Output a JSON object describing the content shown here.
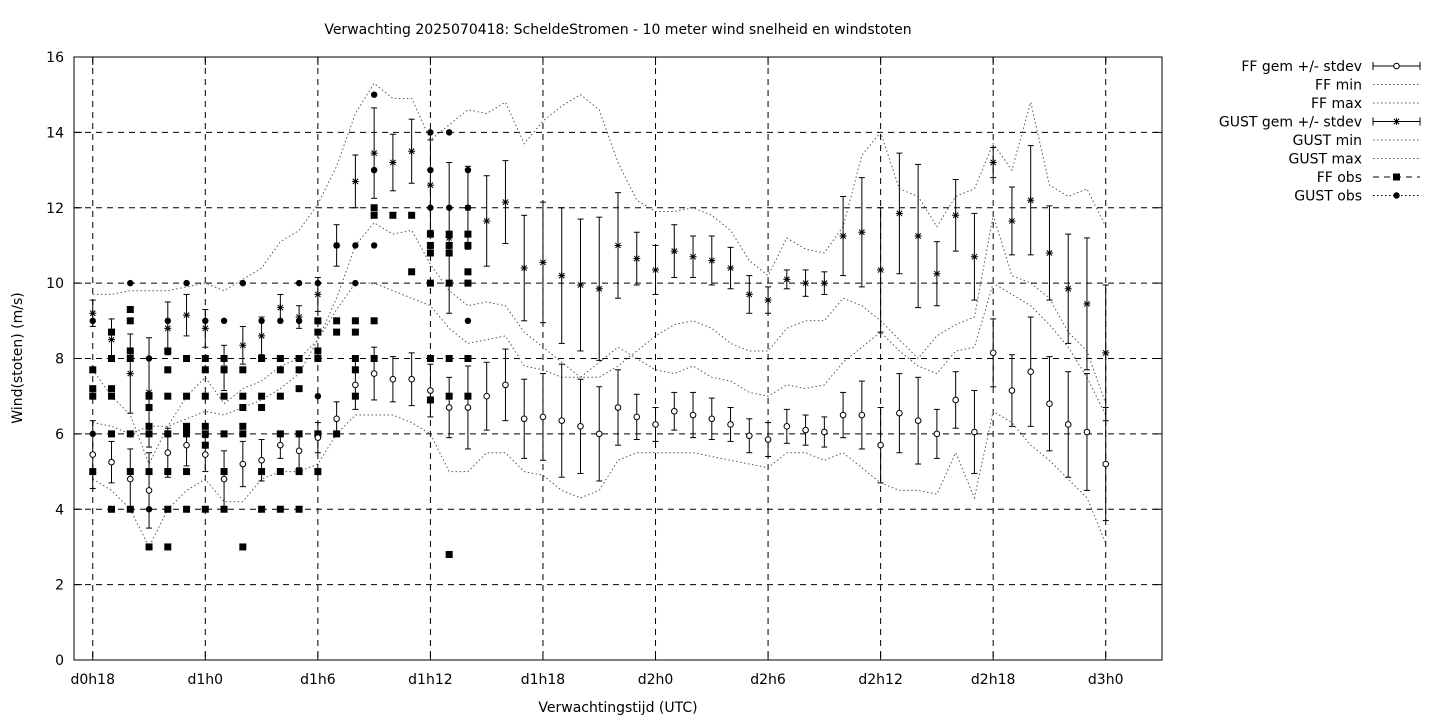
{
  "chart_data": {
    "type": "scatter",
    "title": "Verwachting 2025070418: ScheldeStromen - 10 meter wind snelheid en windstoten",
    "xlabel": "Verwachtingstijd (UTC)",
    "ylabel": "Wind(stoten) (m/s)",
    "xlim": [
      -1,
      57
    ],
    "ylim": [
      0,
      16
    ],
    "grid": true,
    "legend_position": "top-right outside",
    "x_ticks": [
      {
        "x": 0,
        "label": "d0h18"
      },
      {
        "x": 6,
        "label": "d1h0"
      },
      {
        "x": 12,
        "label": "d1h6"
      },
      {
        "x": 18,
        "label": "d1h12"
      },
      {
        "x": 24,
        "label": "d1h18"
      },
      {
        "x": 30,
        "label": "d2h0"
      },
      {
        "x": 36,
        "label": "d2h6"
      },
      {
        "x": 42,
        "label": "d2h12"
      },
      {
        "x": 48,
        "label": "d2h18"
      },
      {
        "x": 54,
        "label": "d3h0"
      }
    ],
    "y_ticks": [
      0,
      2,
      4,
      6,
      8,
      10,
      12,
      14,
      16
    ],
    "x": [
      0,
      1,
      2,
      3,
      4,
      5,
      6,
      7,
      8,
      9,
      10,
      11,
      12,
      13,
      14,
      15,
      16,
      17,
      18,
      19,
      20,
      21,
      22,
      23,
      24,
      25,
      26,
      27,
      28,
      29,
      30,
      31,
      32,
      33,
      34,
      35,
      36,
      37,
      38,
      39,
      40,
      41,
      42,
      43,
      44,
      45,
      46,
      47,
      48,
      49,
      50,
      51,
      52,
      53,
      54
    ],
    "series": [
      {
        "name": "FF gem +/- stdev",
        "marker": "open-circle",
        "values": [
          5.45,
          5.25,
          4.8,
          4.5,
          5.5,
          5.7,
          5.45,
          4.8,
          5.2,
          5.3,
          5.7,
          5.55,
          5.9,
          6.4,
          7.3,
          7.6,
          7.45,
          7.45,
          7.15,
          6.7,
          6.7,
          7.0,
          7.3,
          6.4,
          6.45,
          6.35,
          6.2,
          6.0,
          6.7,
          6.45,
          6.25,
          6.6,
          6.5,
          6.4,
          6.25,
          5.95,
          5.85,
          6.2,
          6.1,
          6.05,
          6.5,
          6.5,
          5.7,
          6.55,
          6.35,
          6.0,
          6.9,
          6.05,
          8.15,
          7.15,
          7.65,
          6.8,
          6.25,
          6.05,
          5.2
        ],
        "stdev": [
          0.9,
          0.55,
          0.8,
          1.0,
          0.65,
          0.55,
          0.45,
          0.75,
          0.6,
          0.55,
          0.35,
          0.45,
          0.4,
          0.45,
          0.65,
          0.7,
          0.6,
          0.7,
          0.7,
          0.8,
          1.1,
          0.9,
          0.95,
          1.05,
          1.15,
          1.5,
          1.25,
          1.25,
          1.0,
          0.6,
          0.45,
          0.5,
          0.6,
          0.55,
          0.45,
          0.45,
          0.45,
          0.45,
          0.4,
          0.4,
          0.6,
          0.9,
          1.0,
          1.05,
          1.15,
          0.65,
          0.75,
          1.1,
          0.9,
          0.95,
          1.45,
          1.25,
          1.4,
          1.55,
          1.5
        ]
      },
      {
        "name": "FF min",
        "style": "dotted",
        "values": [
          4.8,
          4.5,
          4.0,
          3.0,
          4.0,
          4.5,
          4.8,
          4.2,
          4.2,
          4.8,
          5.0,
          5.0,
          5.2,
          6.0,
          6.5,
          6.5,
          6.5,
          6.3,
          6.0,
          5.0,
          5.0,
          5.5,
          5.5,
          5.0,
          4.9,
          4.5,
          4.3,
          4.5,
          5.3,
          5.5,
          5.5,
          5.5,
          5.5,
          5.4,
          5.3,
          5.2,
          5.1,
          5.5,
          5.5,
          5.3,
          5.5,
          5.1,
          4.7,
          4.5,
          4.5,
          4.4,
          5.5,
          4.3,
          6.6,
          6.3,
          5.7,
          5.3,
          4.8,
          4.3,
          3.1
        ]
      },
      {
        "name": "FF max",
        "style": "dotted",
        "values": [
          6.3,
          6.2,
          6.0,
          6.2,
          6.2,
          6.4,
          6.6,
          6.5,
          6.7,
          6.9,
          7.2,
          7.6,
          8.5,
          9.3,
          10.0,
          10.0,
          9.8,
          9.6,
          9.4,
          8.8,
          8.4,
          8.5,
          8.6,
          7.8,
          7.7,
          7.5,
          7.5,
          7.9,
          8.3,
          8.0,
          7.7,
          7.6,
          7.8,
          7.5,
          7.4,
          7.1,
          7.0,
          7.3,
          7.2,
          7.3,
          7.9,
          8.3,
          8.7,
          8.2,
          7.8,
          7.6,
          8.2,
          8.3,
          10.0,
          9.7,
          9.4,
          8.9,
          8.3,
          7.5,
          6.5
        ]
      },
      {
        "name": "GUST gem +/- stdev",
        "marker": "asterisk",
        "values": [
          9.2,
          8.5,
          7.6,
          7.1,
          8.8,
          9.15,
          8.8,
          7.75,
          8.35,
          8.6,
          9.35,
          9.1,
          9.7,
          11.0,
          12.7,
          13.45,
          13.2,
          13.5,
          12.6,
          11.2,
          12.0,
          11.65,
          12.15,
          10.4,
          10.55,
          10.2,
          9.95,
          9.85,
          11.0,
          10.65,
          10.35,
          10.85,
          10.7,
          10.6,
          10.4,
          9.7,
          9.55,
          10.1,
          10.0,
          10.0,
          11.25,
          11.35,
          10.35,
          11.85,
          11.25,
          10.25,
          11.8,
          10.7,
          13.2,
          11.65,
          12.2,
          10.8,
          9.85,
          9.45,
          8.15
        ]
      },
      {
        "name": "GUST min",
        "style": "dotted",
        "values": [
          7.7,
          7.0,
          6.5,
          5.2,
          6.2,
          7.0,
          7.5,
          6.8,
          7.2,
          7.4,
          7.8,
          8.0,
          8.5,
          9.6,
          11.0,
          11.6,
          11.3,
          11.4,
          10.5,
          9.8,
          9.4,
          9.5,
          9.4,
          8.7,
          8.3,
          7.9,
          7.5,
          7.5,
          7.8,
          8.2,
          8.6,
          8.9,
          9.0,
          8.8,
          8.4,
          8.2,
          8.2,
          8.8,
          9.0,
          9.0,
          9.6,
          9.4,
          9.0,
          8.5,
          8.0,
          8.6,
          8.9,
          9.1,
          11.8,
          10.2,
          10.0,
          9.6,
          8.7,
          8.2,
          6.8
        ]
      },
      {
        "name": "GUST max",
        "style": "dotted",
        "values": [
          9.7,
          9.7,
          9.8,
          9.8,
          9.8,
          9.9,
          10.0,
          9.8,
          10.1,
          10.4,
          11.1,
          11.4,
          12.1,
          13.1,
          14.5,
          15.3,
          14.9,
          14.9,
          13.8,
          14.2,
          14.6,
          14.5,
          14.8,
          13.7,
          14.3,
          14.7,
          15.0,
          14.6,
          13.2,
          12.2,
          11.9,
          11.9,
          12.0,
          11.8,
          11.4,
          10.6,
          10.2,
          11.2,
          10.9,
          10.8,
          11.5,
          13.4,
          14.0,
          12.5,
          12.3,
          11.5,
          12.3,
          12.5,
          13.7,
          13.0,
          14.8,
          12.6,
          12.3,
          12.5,
          11.5
        ]
      }
    ],
    "observations": {
      "FF obs": [
        [
          0,
          5
        ],
        [
          0,
          7
        ],
        [
          0,
          7.2
        ],
        [
          0,
          7.7
        ],
        [
          1,
          4
        ],
        [
          1,
          6
        ],
        [
          1,
          7
        ],
        [
          1,
          7.2
        ],
        [
          1,
          8
        ],
        [
          1,
          8.7
        ],
        [
          2,
          4
        ],
        [
          2,
          5
        ],
        [
          2,
          6
        ],
        [
          2,
          8
        ],
        [
          2,
          8.2
        ],
        [
          2,
          9
        ],
        [
          2,
          9.3
        ],
        [
          3,
          3
        ],
        [
          3,
          5
        ],
        [
          3,
          6
        ],
        [
          3,
          6.2
        ],
        [
          3,
          6.7
        ],
        [
          3,
          7
        ],
        [
          4,
          3
        ],
        [
          4,
          4
        ],
        [
          4,
          5
        ],
        [
          4,
          6
        ],
        [
          4,
          7
        ],
        [
          4,
          7.7
        ],
        [
          4,
          8.2
        ],
        [
          5,
          4
        ],
        [
          5,
          5
        ],
        [
          5,
          6
        ],
        [
          5,
          6.1
        ],
        [
          5,
          6.2
        ],
        [
          5,
          7
        ],
        [
          5,
          8
        ],
        [
          6,
          4
        ],
        [
          6,
          5.7
        ],
        [
          6,
          6
        ],
        [
          6,
          6.2
        ],
        [
          6,
          7
        ],
        [
          6,
          7.7
        ],
        [
          6,
          8
        ],
        [
          7,
          4
        ],
        [
          7,
          5
        ],
        [
          7,
          6
        ],
        [
          7,
          7
        ],
        [
          7,
          7.7
        ],
        [
          7,
          8
        ],
        [
          8,
          3
        ],
        [
          8,
          6
        ],
        [
          8,
          6.2
        ],
        [
          8,
          6.7
        ],
        [
          8,
          7
        ],
        [
          8,
          7.7
        ],
        [
          9,
          4
        ],
        [
          9,
          5
        ],
        [
          9,
          6.7
        ],
        [
          9,
          7
        ],
        [
          9,
          8
        ],
        [
          10,
          4
        ],
        [
          10,
          5
        ],
        [
          10,
          6
        ],
        [
          10,
          7
        ],
        [
          10,
          7.7
        ],
        [
          10,
          8
        ],
        [
          11,
          4
        ],
        [
          11,
          5
        ],
        [
          11,
          6
        ],
        [
          11,
          7.2
        ],
        [
          11,
          7.7
        ],
        [
          11,
          8
        ],
        [
          12,
          5
        ],
        [
          12,
          6
        ],
        [
          12,
          8
        ],
        [
          12,
          8.2
        ],
        [
          12,
          8.7
        ],
        [
          12,
          9
        ],
        [
          13,
          6
        ],
        [
          13,
          8.7
        ],
        [
          13,
          9
        ],
        [
          14,
          7
        ],
        [
          14,
          7.7
        ],
        [
          14,
          8
        ],
        [
          14,
          8.7
        ],
        [
          14,
          9
        ],
        [
          15,
          8
        ],
        [
          15,
          9
        ],
        [
          15,
          11.8
        ],
        [
          15,
          12
        ],
        [
          16,
          11.8
        ],
        [
          17,
          10.3
        ],
        [
          17,
          11.8
        ],
        [
          18,
          6.9
        ],
        [
          18,
          8
        ],
        [
          18,
          10
        ],
        [
          18,
          10.8
        ],
        [
          18,
          11
        ],
        [
          18,
          11.3
        ],
        [
          19,
          2.8
        ],
        [
          19,
          7
        ],
        [
          19,
          8
        ],
        [
          19,
          10
        ],
        [
          19,
          10.8
        ],
        [
          19,
          11
        ],
        [
          19,
          11.3
        ],
        [
          20,
          7
        ],
        [
          20,
          8
        ],
        [
          20,
          10
        ],
        [
          20,
          10.3
        ],
        [
          20,
          11
        ],
        [
          20,
          11.3
        ]
      ],
      "GUST obs": [
        [
          0,
          6
        ],
        [
          0,
          9
        ],
        [
          1,
          4
        ],
        [
          2,
          10
        ],
        [
          3,
          4
        ],
        [
          3,
          8
        ],
        [
          4,
          5
        ],
        [
          4,
          9
        ],
        [
          5,
          5
        ],
        [
          5,
          8
        ],
        [
          5,
          10
        ],
        [
          6,
          7
        ],
        [
          6,
          9
        ],
        [
          7,
          9
        ],
        [
          8,
          10
        ],
        [
          9,
          9
        ],
        [
          10,
          6
        ],
        [
          10,
          9
        ],
        [
          11,
          9
        ],
        [
          11,
          10
        ],
        [
          12,
          7
        ],
        [
          12,
          10
        ],
        [
          13,
          11
        ],
        [
          14,
          10
        ],
        [
          14,
          11
        ],
        [
          15,
          11
        ],
        [
          15,
          13
        ],
        [
          15,
          15
        ],
        [
          18,
          12
        ],
        [
          18,
          13
        ],
        [
          18,
          14
        ],
        [
          19,
          12
        ],
        [
          19,
          14
        ],
        [
          20,
          9
        ],
        [
          20,
          12
        ],
        [
          20,
          13
        ]
      ]
    }
  }
}
